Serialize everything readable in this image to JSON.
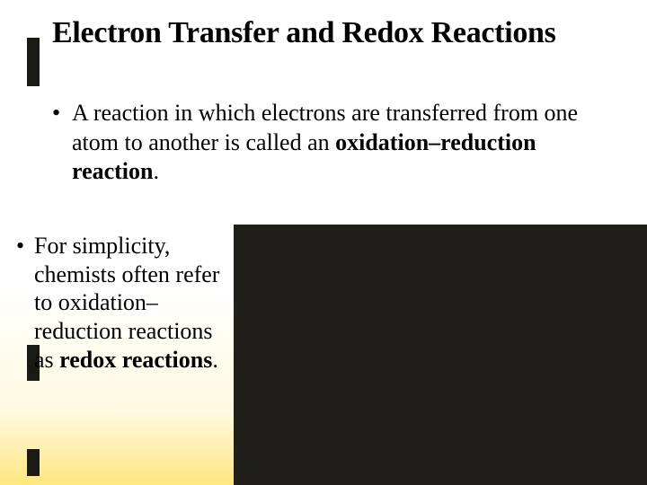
{
  "title": "Electron Transfer and Redox Reactions",
  "bullet1": {
    "text_part1": "A reaction in which electrons are transferred from one atom to another is called an ",
    "bold_part": "oxidation–reduction reaction",
    "text_end": "."
  },
  "bullet2": {
    "text_part1": "For simplicity, chemists often refer to oxidation–reduction reactions as ",
    "bold_part": "redox reactions",
    "text_end": "."
  },
  "colors": {
    "background_top": "#ffffff",
    "background_bottom": "#ffe680",
    "bar_color": "#1a1a15",
    "dark_box": "#211f1a",
    "text": "#000000"
  }
}
